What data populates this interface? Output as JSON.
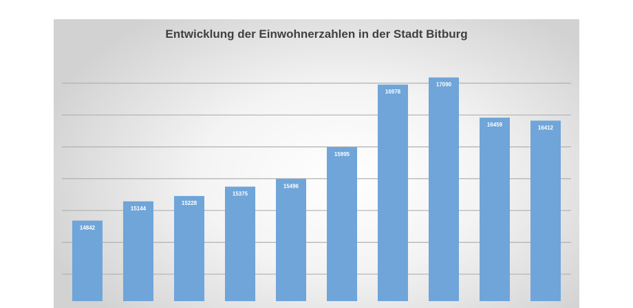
{
  "chart_data": {
    "type": "bar",
    "title": "Entwicklung der Einwohnerzahlen in der Stadt Bitburg",
    "categories": [
      "",
      "",
      "",
      "",
      "",
      "",
      "",
      "",
      "",
      ""
    ],
    "values": [
      14842,
      15144,
      15228,
      15375,
      15496,
      15995,
      16978,
      17090,
      16459,
      16412
    ],
    "data_labels": [
      "14842",
      "15144",
      "15228",
      "15375",
      "15496",
      "15995",
      "16978",
      "17090",
      "16459",
      "16412"
    ],
    "xlabel": "",
    "ylabel": "",
    "gridlines": [
      14000,
      14500,
      15000,
      15500,
      16000,
      16500,
      17000
    ],
    "grid": true,
    "bar_color": "#6fa5d9"
  }
}
